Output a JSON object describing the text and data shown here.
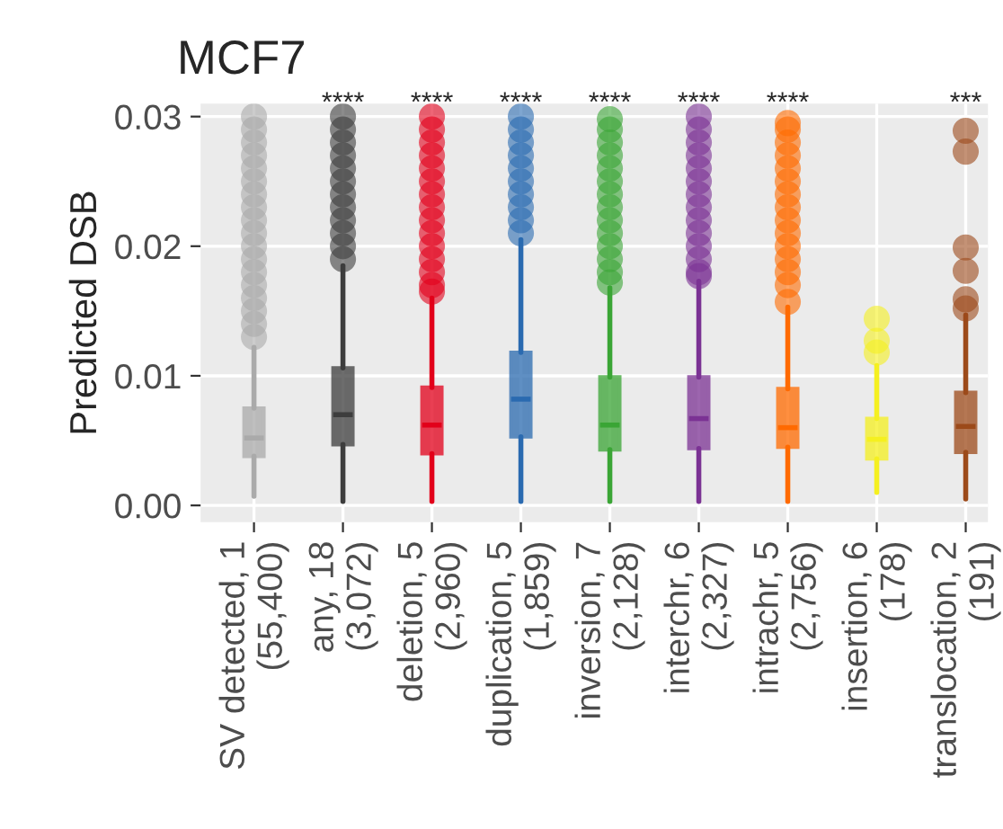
{
  "chart_data": {
    "type": "box",
    "title": "MCF7",
    "ylabel": "Predicted DSB",
    "categories": [
      "SV detected, 1\n(55,400)",
      "any, 18\n(3,072)",
      "deletion, 5\n(2,960)",
      "duplication, 5\n(1,859)",
      "inversion, 7\n(2,128)",
      "interchr, 6\n(2,327)",
      "intrachr, 5\n(2,756)",
      "insertion, 6\n(178)",
      "translocation, 2\n(191)"
    ],
    "colors": [
      "#aaaaaa",
      "#3d3d3d",
      "#e2001a",
      "#2a6ab0",
      "#3aa535",
      "#7b3294",
      "#ff6a00",
      "#f5f020",
      "#9c4a1a"
    ],
    "boxes": [
      {
        "low": 0.0007,
        "q1": 0.0038,
        "median": 0.0052,
        "q3": 0.0075,
        "high": 0.0122,
        "outliers": [
          0.013,
          0.014,
          0.015,
          0.016,
          0.017,
          0.018,
          0.019,
          0.02,
          0.021,
          0.022,
          0.023,
          0.024,
          0.025,
          0.026,
          0.027,
          0.028,
          0.029,
          0.03
        ]
      },
      {
        "low": 0.0003,
        "q1": 0.0047,
        "median": 0.007,
        "q3": 0.0106,
        "high": 0.0185,
        "outliers": [
          0.019,
          0.02,
          0.021,
          0.022,
          0.023,
          0.024,
          0.025,
          0.026,
          0.027,
          0.028,
          0.029,
          0.03
        ]
      },
      {
        "low": 0.0003,
        "q1": 0.004,
        "median": 0.0062,
        "q3": 0.0091,
        "high": 0.016,
        "outliers": [
          0.0165,
          0.017,
          0.018,
          0.019,
          0.02,
          0.021,
          0.022,
          0.023,
          0.024,
          0.025,
          0.026,
          0.027,
          0.028,
          0.029,
          0.03
        ]
      },
      {
        "low": 0.0003,
        "q1": 0.0053,
        "median": 0.0082,
        "q3": 0.0118,
        "high": 0.0205,
        "outliers": [
          0.021,
          0.022,
          0.023,
          0.024,
          0.025,
          0.026,
          0.027,
          0.028,
          0.029,
          0.03
        ]
      },
      {
        "low": 0.0003,
        "q1": 0.0043,
        "median": 0.0062,
        "q3": 0.0099,
        "high": 0.0168,
        "outliers": [
          0.0172,
          0.018,
          0.019,
          0.02,
          0.021,
          0.022,
          0.023,
          0.024,
          0.025,
          0.026,
          0.027,
          0.028,
          0.029,
          0.0298
        ]
      },
      {
        "low": 0.0003,
        "q1": 0.0044,
        "median": 0.0067,
        "q3": 0.0099,
        "high": 0.0173,
        "outliers": [
          0.0177,
          0.018,
          0.019,
          0.02,
          0.021,
          0.022,
          0.023,
          0.024,
          0.025,
          0.026,
          0.027,
          0.028,
          0.029,
          0.03
        ]
      },
      {
        "low": 0.0003,
        "q1": 0.0045,
        "median": 0.006,
        "q3": 0.009,
        "high": 0.0153,
        "outliers": [
          0.0157,
          0.017,
          0.018,
          0.019,
          0.02,
          0.021,
          0.022,
          0.023,
          0.024,
          0.025,
          0.026,
          0.027,
          0.028,
          0.029,
          0.0295
        ]
      },
      {
        "low": 0.001,
        "q1": 0.0036,
        "median": 0.0051,
        "q3": 0.0067,
        "high": 0.0108,
        "outliers": [
          0.0118,
          0.0127,
          0.0144
        ]
      },
      {
        "low": 0.0005,
        "q1": 0.0041,
        "median": 0.0061,
        "q3": 0.0087,
        "high": 0.0147,
        "outliers": [
          0.0152,
          0.0159,
          0.0181,
          0.0199,
          0.0273,
          0.0289
        ]
      }
    ],
    "ylim": [
      -0.0013,
      0.031
    ],
    "yticks": [
      {
        "value": 0,
        "label": "0.00"
      },
      {
        "value": 0.01,
        "label": "0.01"
      },
      {
        "value": 0.02,
        "label": "0.02"
      },
      {
        "value": 0.03,
        "label": "0.03"
      }
    ],
    "grid": true,
    "value_labels": [
      null,
      "****",
      "****",
      "****",
      "****",
      "****",
      "****",
      null,
      "***"
    ]
  }
}
